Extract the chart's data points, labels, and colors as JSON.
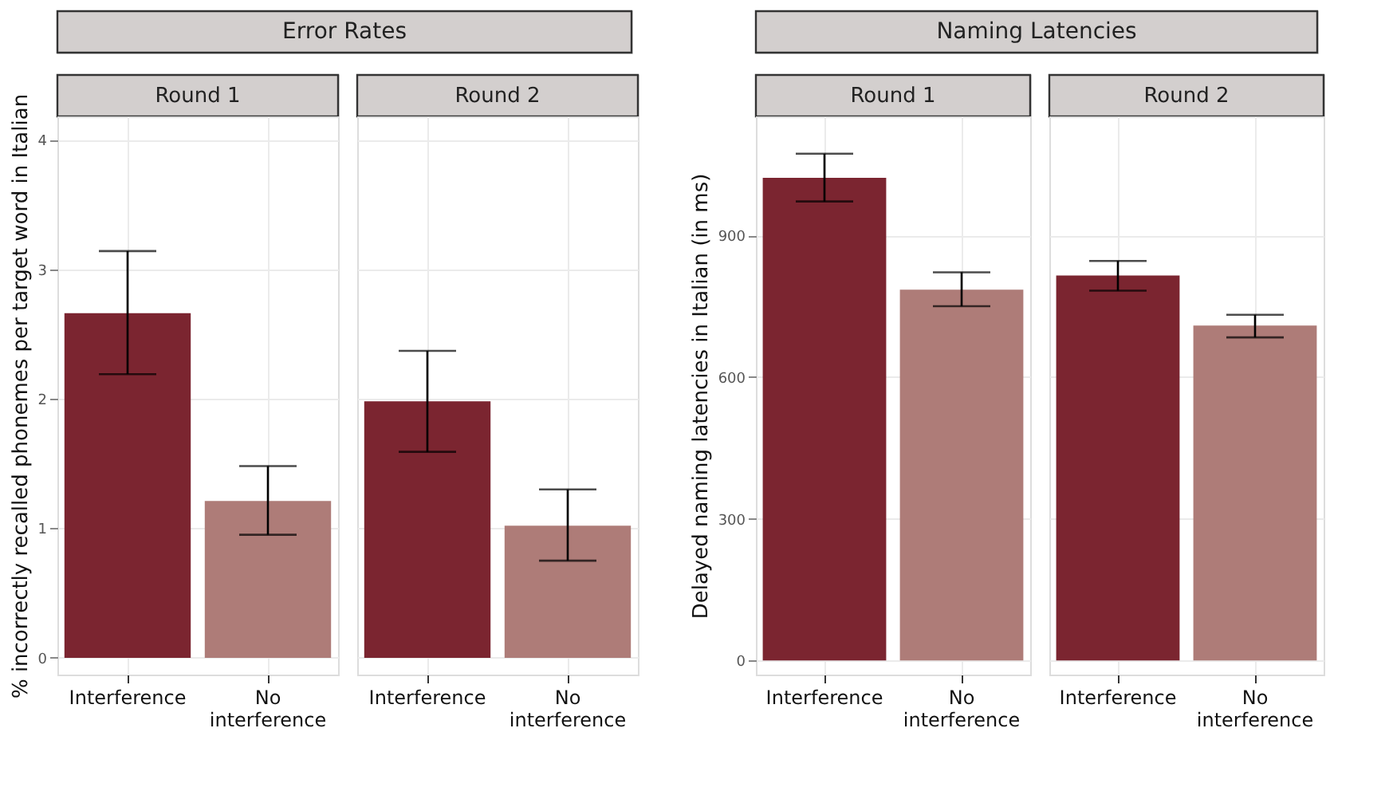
{
  "chart_data": [
    {
      "type": "bar",
      "title": "Error Rates",
      "subtitle": "Round 1",
      "ylabel": "% incorrectly recalled phonemes per target word in Italian",
      "categories": [
        "Interference",
        "No interference"
      ],
      "values": [
        2.66,
        1.21
      ],
      "errors": [
        [
          2.19,
          3.14
        ],
        [
          0.95,
          1.48
        ]
      ],
      "colors": [
        "#7b2530",
        "#ae7c78"
      ],
      "ylim": [
        -0.13,
        4.18
      ],
      "yticks": [
        0,
        1,
        2,
        3,
        4
      ],
      "grid": true
    },
    {
      "type": "bar",
      "subtitle": "Round 2",
      "categories": [
        "Interference",
        "No interference"
      ],
      "values": [
        1.98,
        1.02
      ],
      "errors": [
        [
          1.59,
          2.37
        ],
        [
          0.75,
          1.3
        ]
      ],
      "colors": [
        "#7b2530",
        "#ae7c78"
      ],
      "ylim": [
        -0.13,
        4.18
      ],
      "yticks": [
        0,
        1,
        2,
        3,
        4
      ],
      "grid": true,
      "tick_labels": "x"
    },
    {
      "type": "bar",
      "title": "Naming Latencies",
      "subtitle": "Round 1",
      "ylabel": "Delayed naming latencies in Italian (in ms)",
      "categories": [
        "Interference",
        "No interference"
      ],
      "values": [
        1022,
        785
      ],
      "errors": [
        [
          972,
          1073
        ],
        [
          750,
          822
        ]
      ],
      "colors": [
        "#7b2530",
        "#ae7c78"
      ],
      "ylim": [
        -30,
        1152
      ],
      "yticks": [
        0,
        300,
        600,
        900
      ],
      "grid": true
    },
    {
      "type": "bar",
      "subtitle": "Round 2",
      "categories": [
        "Interference",
        "No interference"
      ],
      "values": [
        815,
        709
      ],
      "errors": [
        [
          783,
          846
        ],
        [
          684,
          732
        ]
      ],
      "colors": [
        "#7b2530",
        "#ae7c78"
      ],
      "ylim": [
        -30,
        1152
      ],
      "yticks": [
        0,
        300,
        600,
        900
      ],
      "grid": true,
      "tick_labels": "x"
    }
  ]
}
